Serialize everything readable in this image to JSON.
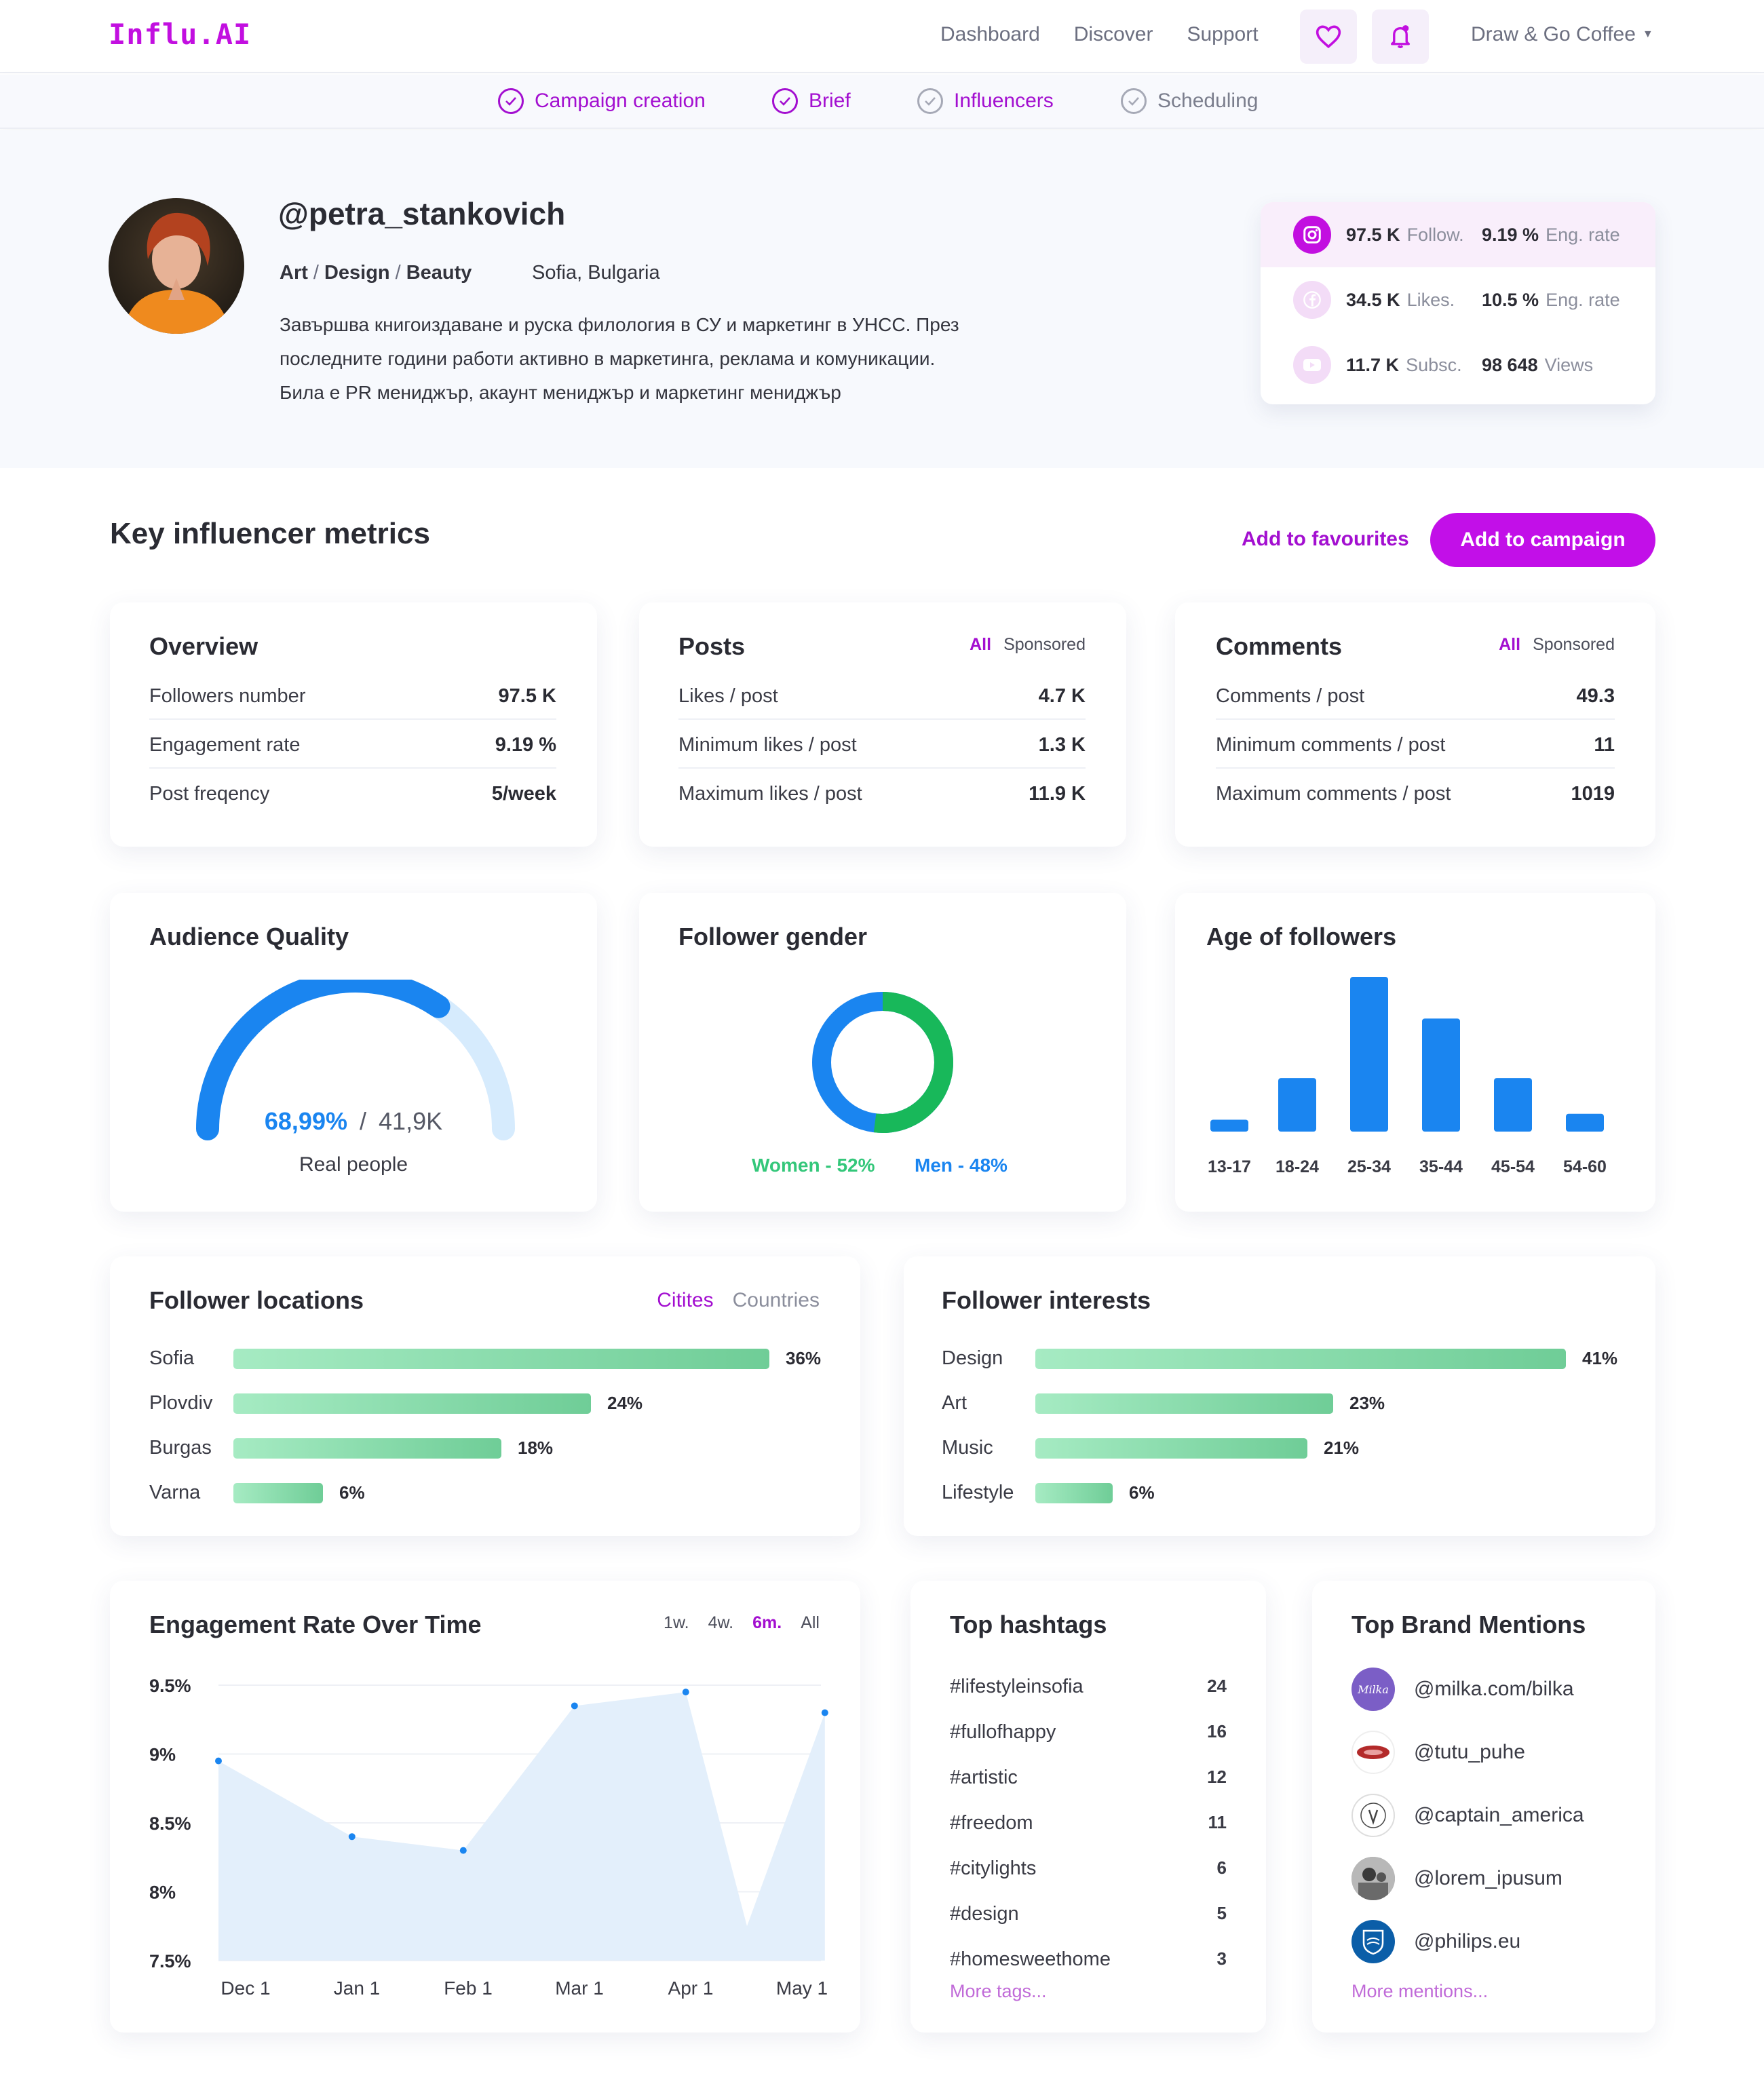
{
  "brand": {
    "logo": "Influ.AI"
  },
  "nav": {
    "links": [
      "Dashboard",
      "Discover",
      "Support"
    ],
    "icons": [
      "heart-icon",
      "bell-icon"
    ],
    "account": "Draw & Go Coffee"
  },
  "steps": [
    {
      "label": "Campaign creation",
      "state": "done"
    },
    {
      "label": "Brief",
      "state": "done"
    },
    {
      "label": "Influencers",
      "state": "active"
    },
    {
      "label": "Scheduling",
      "state": "pending"
    }
  ],
  "profile": {
    "handle": "@petra_stankovich",
    "categories": [
      "Art",
      "Design",
      "Beauty"
    ],
    "location": "Sofia, Bulgaria",
    "bio": [
      "Завършва книгоиздаване и руска филология в СУ и маркетинг в УНСС. През",
      "последните години работи активно в  маркетинга, реклама и комуникации.",
      "Била е PR мениджър, акаунт мениджър и маркетинг мениджър"
    ]
  },
  "socials": [
    {
      "network": "instagram-icon",
      "value": "97.5 K",
      "label": "Follow.",
      "metric": "9.19 %",
      "metric_label": "Eng. rate"
    },
    {
      "network": "facebook-icon",
      "value": "34.5 K",
      "label": "Likes.",
      "metric": "10.5 %",
      "metric_label": "Eng. rate"
    },
    {
      "network": "youtube-icon",
      "value": "11.7 K",
      "label": "Subsc.",
      "metric": "98 648",
      "metric_label": "Views"
    }
  ],
  "section": {
    "title": "Key influencer metrics",
    "favourites": "Add to favourites",
    "add_campaign": "Add to campaign"
  },
  "overview": {
    "title": "Overview",
    "rows": [
      {
        "k": "Followers number",
        "v": "97.5 K"
      },
      {
        "k": "Engagement rate",
        "v": "9.19 %"
      },
      {
        "k": "Post freqency",
        "v": "5/week"
      }
    ]
  },
  "posts": {
    "title": "Posts",
    "filters": [
      "All",
      "Sponsored"
    ],
    "rows": [
      {
        "k": "Likes / post",
        "v": "4.7 K"
      },
      {
        "k": "Minimum likes / post",
        "v": "1.3 K"
      },
      {
        "k": "Maximum likes / post",
        "v": "11.9 K"
      }
    ]
  },
  "comments": {
    "title": "Comments",
    "filters": [
      "All",
      "Sponsored"
    ],
    "rows": [
      {
        "k": "Comments / post",
        "v": "49.3"
      },
      {
        "k": "Minimum comments / post",
        "v": "11"
      },
      {
        "k": "Maximum comments / post",
        "v": "1019"
      }
    ]
  },
  "audience_quality": {
    "title": "Audience Quality",
    "percent_text": "68,99%",
    "total": "41,9K",
    "caption": "Real people",
    "fraction": 0.6899
  },
  "gender": {
    "title": "Follower gender",
    "women_label": "Women - 52%",
    "men_label": "Men - 48%",
    "women": 52,
    "men": 48,
    "colors": {
      "women": "#18b85a",
      "men": "#1a85f0"
    }
  },
  "age": {
    "title": "Age of followers",
    "chart_data": {
      "type": "bar",
      "categories": [
        "13-17",
        "18-24",
        "25-34",
        "35-44",
        "45-54",
        "54-60"
      ],
      "values": [
        2,
        9,
        26,
        19,
        9,
        3
      ]
    }
  },
  "locations": {
    "title": "Follower locations",
    "filters": [
      "Citites",
      "Countries"
    ],
    "items": [
      {
        "label": "Sofia",
        "pct": "36%",
        "value": 36
      },
      {
        "label": "Plovdiv",
        "pct": "24%",
        "value": 24
      },
      {
        "label": "Burgas",
        "pct": "18%",
        "value": 18
      },
      {
        "label": "Varna",
        "pct": "6%",
        "value": 6
      }
    ]
  },
  "interests": {
    "title": "Follower interests",
    "items": [
      {
        "label": "Design",
        "pct": "41%",
        "value": 41
      },
      {
        "label": "Art",
        "pct": "23%",
        "value": 23
      },
      {
        "label": "Music",
        "pct": "21%",
        "value": 21
      },
      {
        "label": "Lifestyle",
        "pct": "6%",
        "value": 6
      }
    ]
  },
  "engagement": {
    "title": "Engagement Rate Over Time",
    "ranges": [
      "1w.",
      "4w.",
      "6m.",
      "All"
    ],
    "active_range": "6m.",
    "chart_data": {
      "type": "area",
      "x": [
        "Dec 1",
        "Jan 1",
        "Feb 1",
        "Mar 1",
        "Apr 1",
        "May 1"
      ],
      "y_ticks": [
        "9.5%",
        "9%",
        "8.5%",
        "8%",
        "7.5%"
      ],
      "ylim": [
        7.5,
        9.5
      ],
      "points": [
        {
          "x": 0.0,
          "y": 8.95
        },
        {
          "x": 1.2,
          "y": 8.4
        },
        {
          "x": 2.2,
          "y": 8.3
        },
        {
          "x": 3.2,
          "y": 9.35
        },
        {
          "x": 4.2,
          "y": 9.45
        },
        {
          "x": 4.75,
          "y": 7.75
        },
        {
          "x": 5.45,
          "y": 9.3
        }
      ],
      "grid": true,
      "color": "#1a85f0"
    }
  },
  "hashtags": {
    "title": "Top hashtags",
    "items": [
      {
        "tag": "#lifestyleinsofia",
        "n": "24"
      },
      {
        "tag": "#fullofhappy",
        "n": "16"
      },
      {
        "tag": "#artistic",
        "n": "12"
      },
      {
        "tag": "#freedom",
        "n": "11"
      },
      {
        "tag": "#citylights",
        "n": "6"
      },
      {
        "tag": "#design",
        "n": "5"
      },
      {
        "tag": "#homesweethome",
        "n": "3"
      }
    ],
    "more": "More tags..."
  },
  "brands": {
    "title": "Top Brand Mentions",
    "items": [
      {
        "handle": "@milka.com/bilka",
        "logo_text": "Milka",
        "color": "#7b5ec6"
      },
      {
        "handle": "@tutu_puhe",
        "color": "#b32a2a"
      },
      {
        "handle": "@captain_america",
        "color": "#444444"
      },
      {
        "handle": "@lorem_ipusum",
        "color": "#6a6a6a"
      },
      {
        "handle": "@philips.eu",
        "color": "#0b5ea8"
      }
    ],
    "more": "More mentions..."
  }
}
